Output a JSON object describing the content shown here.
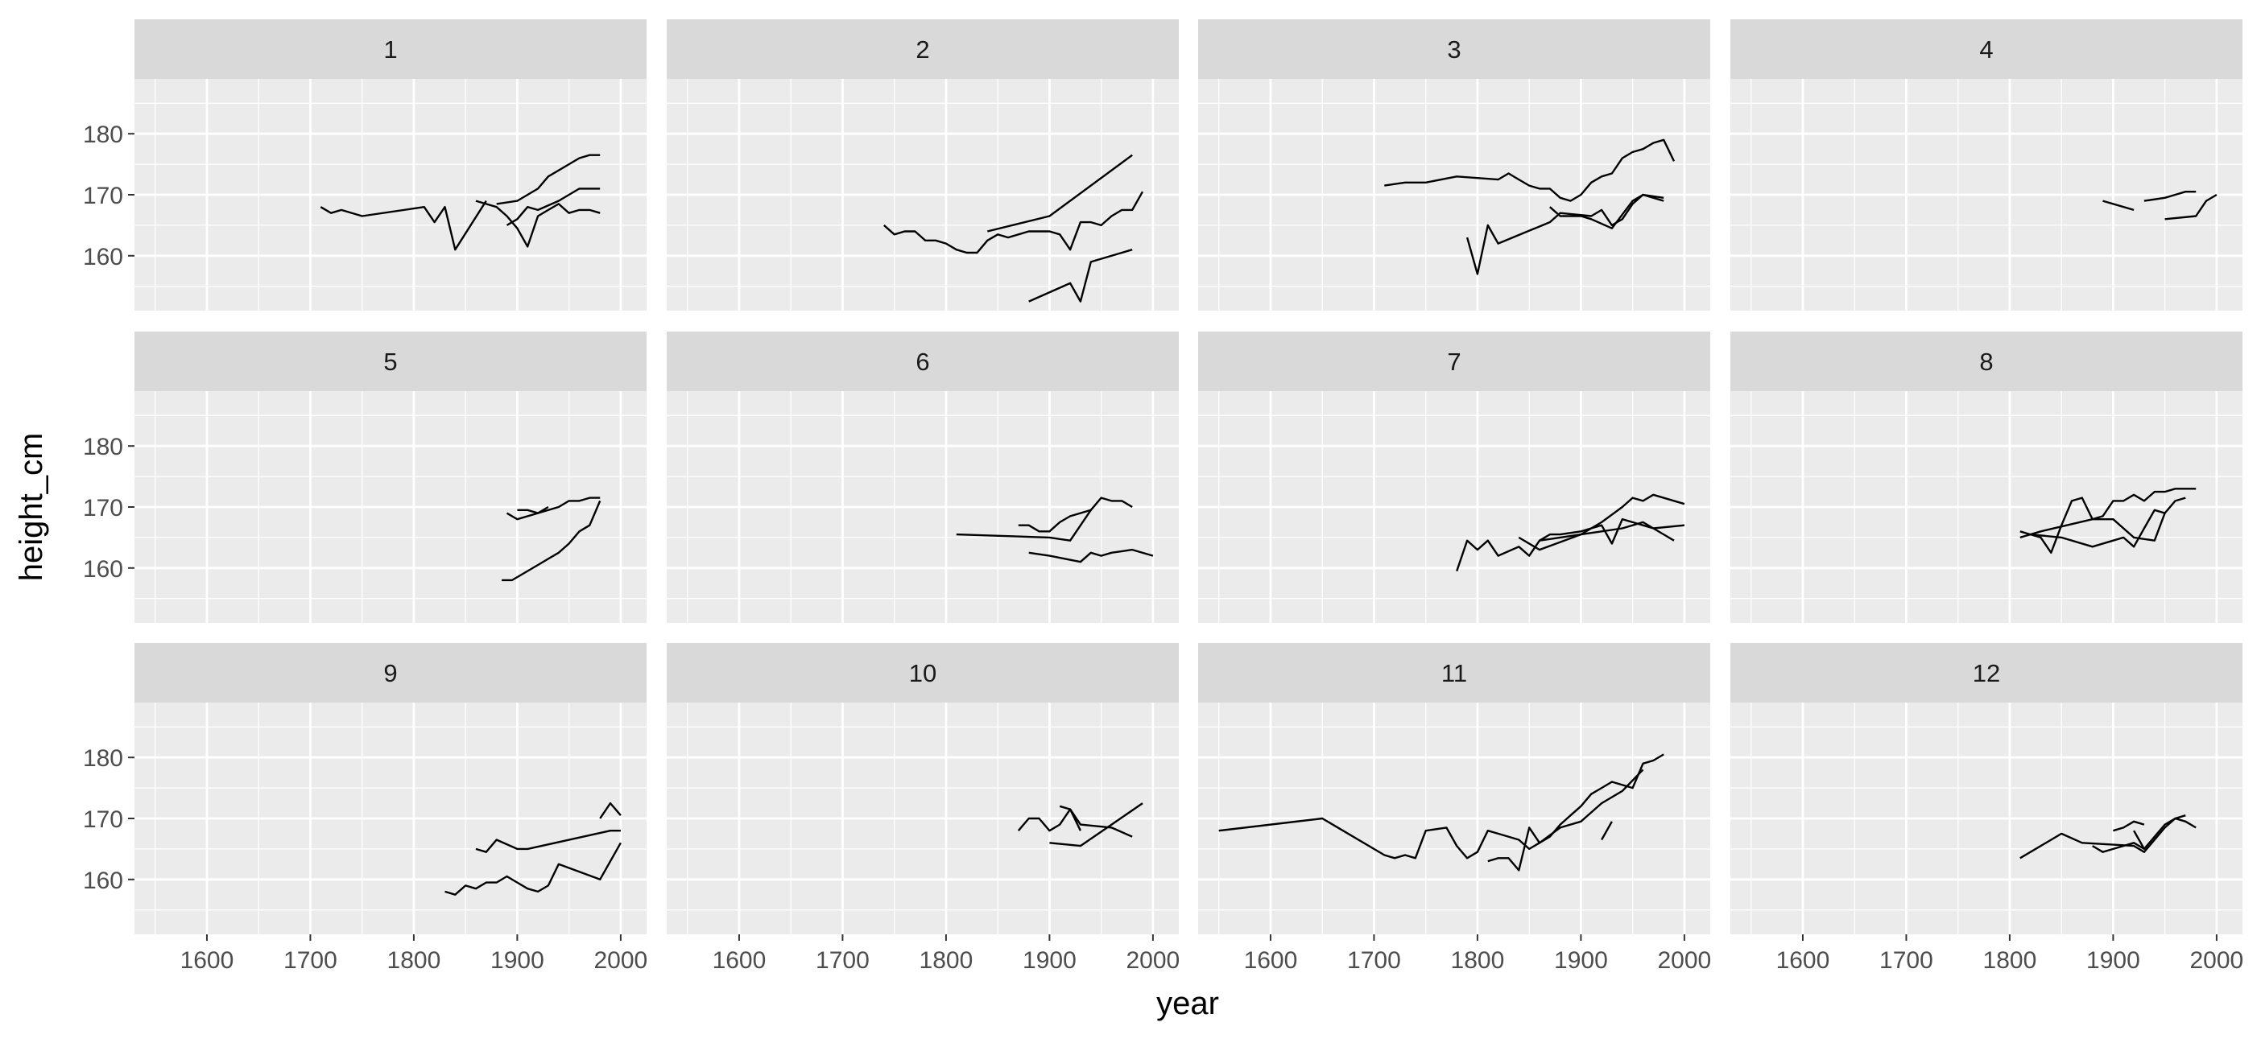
{
  "chart_data": {
    "type": "line",
    "facet_layout": {
      "rows": 3,
      "cols": 4
    },
    "xlabel": "year",
    "ylabel": "height_cm",
    "xlim": [
      1530,
      2025
    ],
    "ylim": [
      151,
      189
    ],
    "x_ticks": [
      1600,
      1700,
      1800,
      1900,
      2000
    ],
    "y_ticks": [
      160,
      170,
      180
    ],
    "grid": true,
    "line_color": "#000000",
    "panel_bg": "#ebebeb",
    "strip_bg": "#d9d9d9",
    "facets": [
      {
        "label": "1",
        "series": [
          {
            "x": [
              1710,
              1720,
              1730,
              1750,
              1810,
              1820,
              1830,
              1840,
              1870
            ],
            "y": [
              168,
              167,
              167.5,
              166.5,
              168,
              165.5,
              168,
              161,
              169
            ]
          },
          {
            "x": [
              1860,
              1880,
              1890,
              1900,
              1910,
              1920,
              1930,
              1940,
              1950,
              1960,
              1970,
              1980
            ],
            "y": [
              169,
              168,
              166.5,
              164.5,
              161.5,
              166.5,
              167.5,
              168.5,
              167,
              167.5,
              167.5,
              167
            ]
          },
          {
            "x": [
              1880,
              1900,
              1920,
              1930,
              1950,
              1960,
              1970,
              1980
            ],
            "y": [
              168.5,
              169,
              171,
              173,
              175,
              176,
              176.5,
              176.5
            ]
          },
          {
            "x": [
              1890,
              1900,
              1910,
              1920,
              1940,
              1960,
              1980
            ],
            "y": [
              165,
              166,
              168,
              167.5,
              169,
              171,
              171
            ]
          }
        ]
      },
      {
        "label": "2",
        "series": [
          {
            "x": [
              1740,
              1750,
              1760,
              1770,
              1780,
              1790,
              1800,
              1810,
              1820,
              1830,
              1840,
              1850,
              1860,
              1870,
              1880,
              1890,
              1900,
              1910,
              1920,
              1930,
              1940,
              1950,
              1960,
              1970,
              1980,
              1990
            ],
            "y": [
              165,
              163.5,
              164,
              164,
              162.5,
              162.5,
              162,
              161,
              160.5,
              160.5,
              162.5,
              163.5,
              163,
              163.5,
              164,
              164,
              164,
              163.5,
              161,
              165.5,
              165.5,
              165,
              166.5,
              167.5,
              167.5,
              170.5
            ]
          },
          {
            "x": [
              1840,
              1900,
              1980
            ],
            "y": [
              164,
              166.5,
              176.5
            ]
          },
          {
            "x": [
              1880,
              1920,
              1930,
              1940,
              1980
            ],
            "y": [
              152.5,
              155.5,
              152.5,
              159,
              161
            ]
          }
        ]
      },
      {
        "label": "3",
        "series": [
          {
            "x": [
              1710,
              1730,
              1750,
              1780,
              1820,
              1830,
              1840,
              1850,
              1860,
              1870,
              1880,
              1890,
              1900,
              1910,
              1920,
              1930,
              1940,
              1950,
              1960,
              1970,
              1980,
              1990
            ],
            "y": [
              171.5,
              172,
              172,
              173,
              172.5,
              173.5,
              172.5,
              171.5,
              171,
              171,
              169.5,
              169,
              170,
              172,
              173,
              173.5,
              176,
              177,
              177.5,
              178.5,
              179,
              175.5
            ]
          },
          {
            "x": [
              1790,
              1800,
              1810,
              1820,
              1870,
              1880,
              1910,
              1920,
              1930,
              1940,
              1950,
              1960,
              1970,
              1980
            ],
            "y": [
              163,
              157,
              165,
              162,
              165.5,
              167,
              166.5,
              167.5,
              165,
              166,
              168.5,
              170,
              169.5,
              169
            ]
          },
          {
            "x": [
              1870,
              1880,
              1900,
              1910,
              1930,
              1950,
              1960,
              1980
            ],
            "y": [
              168,
              166.5,
              166.5,
              166,
              164.5,
              169,
              170,
              169.5
            ]
          }
        ]
      },
      {
        "label": "4",
        "series": [
          {
            "x": [
              1890,
              1920
            ],
            "y": [
              169,
              167.5
            ]
          },
          {
            "x": [
              1930,
              1950,
              1960,
              1970,
              1980
            ],
            "y": [
              169,
              169.5,
              170,
              170.5,
              170.5
            ]
          },
          {
            "x": [
              1950,
              1980,
              1990,
              2000
            ],
            "y": [
              166,
              166.5,
              169,
              170
            ]
          }
        ]
      },
      {
        "label": "5",
        "series": [
          {
            "x": [
              1885,
              1895,
              1905,
              1920,
              1930,
              1940,
              1950,
              1960,
              1970,
              1980
            ],
            "y": [
              158,
              158,
              159,
              160.5,
              161.5,
              162.5,
              164,
              166,
              167,
              171
            ]
          },
          {
            "x": [
              1890,
              1900,
              1920,
              1940,
              1950,
              1960,
              1970,
              1980
            ],
            "y": [
              169,
              168,
              169,
              170,
              171,
              171,
              171.5,
              171.5
            ]
          },
          {
            "x": [
              1900,
              1910,
              1920,
              1930
            ],
            "y": [
              169.5,
              169.5,
              169,
              170
            ]
          }
        ]
      },
      {
        "label": "6",
        "series": [
          {
            "x": [
              1810,
              1900,
              1920,
              1940,
              1950,
              1960,
              1970,
              1980
            ],
            "y": [
              165.5,
              165,
              164.5,
              169.5,
              171.5,
              171,
              171,
              170
            ]
          },
          {
            "x": [
              1870,
              1880,
              1890,
              1900,
              1910,
              1920,
              1940
            ],
            "y": [
              167,
              167,
              166,
              166,
              167.5,
              168.5,
              169.5
            ]
          },
          {
            "x": [
              1880,
              1900,
              1930,
              1940,
              1950,
              1960,
              1980,
              2000
            ],
            "y": [
              162.5,
              162,
              161,
              162.5,
              162,
              162.5,
              163,
              162
            ]
          }
        ]
      },
      {
        "label": "7",
        "series": [
          {
            "x": [
              1780,
              1790,
              1800,
              1810,
              1820,
              1840,
              1850,
              1860,
              1870,
              1880,
              1900,
              1910,
              1920,
              1930,
              1940,
              1950,
              1960,
              1970,
              2000
            ],
            "y": [
              159.5,
              164.5,
              163,
              164.5,
              162,
              163.5,
              162,
              164.5,
              165.5,
              165.5,
              166,
              166.5,
              167,
              164,
              168,
              167.5,
              167,
              166.5,
              167
            ]
          },
          {
            "x": [
              1840,
              1860,
              1900,
              1920,
              1940,
              1950,
              1960,
              1970,
              2000
            ],
            "y": [
              165,
              163,
              165.5,
              167.5,
              170,
              171.5,
              171,
              172,
              170.5
            ]
          },
          {
            "x": [
              1860,
              1880,
              1900,
              1920,
              1940,
              1960,
              1980,
              1990
            ],
            "y": [
              164.5,
              165,
              165.5,
              166,
              166.5,
              167.5,
              165.5,
              164.5
            ]
          }
        ]
      },
      {
        "label": "8",
        "series": [
          {
            "x": [
              1810,
              1820,
              1830,
              1840,
              1850,
              1860,
              1870,
              1880,
              1890,
              1900,
              1910,
              1920,
              1930,
              1940,
              1950,
              1960,
              1970,
              1980
            ],
            "y": [
              166,
              165.5,
              165,
              162.5,
              167,
              171,
              171.5,
              168,
              168.5,
              171,
              171,
              172,
              171,
              172.5,
              172.5,
              173,
              173,
              173
            ]
          },
          {
            "x": [
              1820,
              1850,
              1880,
              1900,
              1910,
              1920,
              1930,
              1940,
              1950,
              1960,
              1970
            ],
            "y": [
              165.5,
              165,
              163.5,
              164.5,
              165,
              163.5,
              166.5,
              169.5,
              169,
              171,
              171.5
            ]
          },
          {
            "x": [
              1810,
              1830,
              1880,
              1900,
              1920,
              1940,
              1950
            ],
            "y": [
              165,
              166,
              168,
              168,
              165,
              164.5,
              169
            ]
          }
        ]
      },
      {
        "label": "9",
        "series": [
          {
            "x": [
              1830,
              1840,
              1850,
              1860,
              1870,
              1880,
              1890,
              1900,
              1910,
              1920,
              1930,
              1940,
              1980,
              2000
            ],
            "y": [
              158,
              157.5,
              159,
              158.5,
              159.5,
              159.5,
              160.5,
              159.5,
              158.5,
              158,
              159,
              162.5,
              160,
              166
            ]
          },
          {
            "x": [
              1860,
              1870,
              1880,
              1900,
              1910,
              1990,
              2000
            ],
            "y": [
              165,
              164.5,
              166.5,
              165,
              165,
              168,
              168
            ]
          },
          {
            "x": [
              1980,
              1990,
              2000
            ],
            "y": [
              170,
              172.5,
              170.5
            ]
          }
        ]
      },
      {
        "label": "10",
        "series": [
          {
            "x": [
              1870,
              1880,
              1890,
              1900,
              1910,
              1920,
              1930
            ],
            "y": [
              168,
              170,
              170,
              168,
              169,
              171.5,
              168
            ]
          },
          {
            "x": [
              1900,
              1930,
              1960,
              1990
            ],
            "y": [
              166,
              165.5,
              169,
              172.5
            ]
          },
          {
            "x": [
              1910,
              1920,
              1930,
              1960,
              1980
            ],
            "y": [
              172,
              171.5,
              169,
              168.5,
              167
            ]
          }
        ]
      },
      {
        "label": "11",
        "series": [
          {
            "x": [
              1550,
              1650,
              1710,
              1720,
              1730,
              1740,
              1750,
              1770,
              1780,
              1790,
              1800,
              1810,
              1820,
              1840,
              1850,
              1870,
              1880,
              1890,
              1900,
              1910,
              1920,
              1930,
              1950,
              1960,
              1970,
              1980
            ],
            "y": [
              168,
              170,
              164,
              163.5,
              164,
              163.5,
              168,
              168.5,
              165.5,
              163.5,
              164.5,
              168,
              167.5,
              166.5,
              165,
              167,
              169,
              170.5,
              172,
              174,
              175,
              176,
              175,
              179,
              179.5,
              180.5
            ]
          },
          {
            "x": [
              1810,
              1820,
              1830,
              1840,
              1850,
              1860,
              1880,
              1900,
              1920,
              1940,
              1960
            ],
            "y": [
              163,
              163.5,
              163.5,
              161.5,
              168.5,
              166,
              168.5,
              169.5,
              172.5,
              174.5,
              178
            ]
          },
          {
            "x": [
              1920,
              1930
            ],
            "y": [
              166.5,
              169.5
            ]
          }
        ]
      },
      {
        "label": "12",
        "series": [
          {
            "x": [
              1810,
              1850,
              1870,
              1920,
              1930,
              1950,
              1960,
              1970
            ],
            "y": [
              163.5,
              167.5,
              166,
              165.5,
              164.5,
              168.5,
              170,
              170.5
            ]
          },
          {
            "x": [
              1880,
              1890,
              1900,
              1910,
              1920,
              1930,
              1940,
              1950,
              1960,
              1970,
              1980
            ],
            "y": [
              165.5,
              164.5,
              165,
              165.5,
              166,
              165,
              167,
              169,
              170,
              169.5,
              168.5
            ]
          },
          {
            "x": [
              1900,
              1910,
              1920,
              1930
            ],
            "y": [
              168,
              168.5,
              169.5,
              169
            ]
          },
          {
            "x": [
              1920,
              1930
            ],
            "y": [
              168,
              165
            ]
          }
        ]
      }
    ]
  }
}
